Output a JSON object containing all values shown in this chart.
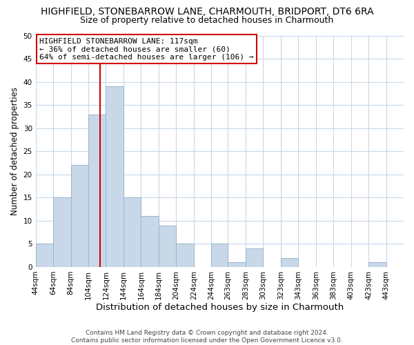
{
  "title": "HIGHFIELD, STONEBARROW LANE, CHARMOUTH, BRIDPORT, DT6 6RA",
  "subtitle": "Size of property relative to detached houses in Charmouth",
  "xlabel": "Distribution of detached houses by size in Charmouth",
  "ylabel": "Number of detached properties",
  "bar_color": "#c8d8e8",
  "bar_edge_color": "#9ab5cc",
  "grid_color": "#c8d8e8",
  "annotation_box_color": "#cc0000",
  "annotation_line0": "HIGHFIELD STONEBARROW LANE: 117sqm",
  "annotation_line1": "← 36% of detached houses are smaller (60)",
  "annotation_line2": "64% of semi-detached houses are larger (106) →",
  "marker_value": 117,
  "categories": [
    "44sqm",
    "64sqm",
    "84sqm",
    "104sqm",
    "124sqm",
    "144sqm",
    "164sqm",
    "184sqm",
    "204sqm",
    "224sqm",
    "244sqm",
    "263sqm",
    "283sqm",
    "303sqm",
    "323sqm",
    "343sqm",
    "363sqm",
    "383sqm",
    "403sqm",
    "423sqm",
    "443sqm"
  ],
  "bin_edges": [
    44,
    64,
    84,
    104,
    124,
    144,
    164,
    184,
    204,
    224,
    244,
    263,
    283,
    303,
    323,
    343,
    363,
    383,
    403,
    423,
    443,
    463
  ],
  "values": [
    5,
    15,
    22,
    33,
    39,
    15,
    11,
    9,
    5,
    0,
    5,
    1,
    4,
    0,
    2,
    0,
    0,
    0,
    0,
    1,
    0
  ],
  "ylim": [
    0,
    50
  ],
  "yticks": [
    0,
    5,
    10,
    15,
    20,
    25,
    30,
    35,
    40,
    45,
    50
  ],
  "footer_line1": "Contains HM Land Registry data © Crown copyright and database right 2024.",
  "footer_line2": "Contains public sector information licensed under the Open Government Licence v3.0.",
  "title_fontsize": 10,
  "subtitle_fontsize": 9,
  "xlabel_fontsize": 9.5,
  "ylabel_fontsize": 8.5,
  "tick_fontsize": 7.5,
  "footer_fontsize": 6.5,
  "annotation_fontsize": 8,
  "red_line_color": "#cc0000",
  "background_color": "#ffffff"
}
